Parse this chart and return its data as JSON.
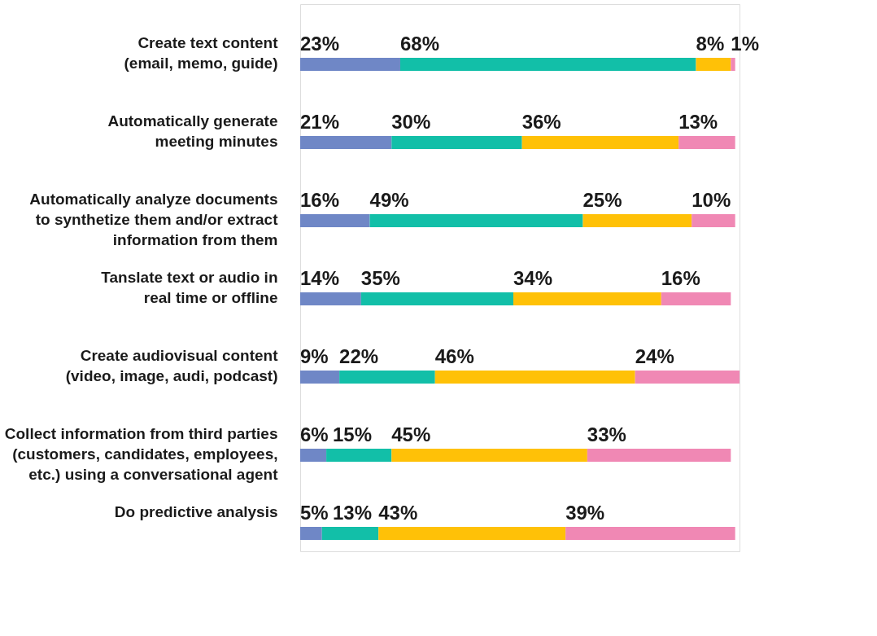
{
  "chart_data": {
    "type": "bar",
    "orientation": "horizontal",
    "stacked": true,
    "data_labels": false,
    "categories": [
      "Create text content\n(email, memo, guide)",
      "Automatically generate\nmeeting minutes",
      "Automatically analyze documents\nto synthetize them and/or extract\ninformation from them",
      "Tanslate text or audio in\nreal time or offline",
      "Create audiovisual content\n(video, image, audi, podcast)",
      "Collect information from third parties\n(customers, candidates, employees,\netc.) using a conversational agent",
      "Do predictive analysis"
    ],
    "series": [
      {
        "color": "#6f87c6",
        "values": [
          23,
          21,
          16,
          14,
          9,
          6,
          5
        ],
        "value_labels": [
          "23%",
          "21%",
          "16%",
          "14%",
          "9%",
          "6%",
          "5%"
        ]
      },
      {
        "color": "#12bfa8",
        "values": [
          68,
          30,
          49,
          35,
          22,
          15,
          13
        ],
        "value_labels": [
          "68%",
          "30%",
          "49%",
          "35%",
          "22%",
          "15%",
          "13%"
        ]
      },
      {
        "color": "#ffc107",
        "values": [
          8,
          36,
          25,
          34,
          46,
          45,
          43
        ],
        "value_labels": [
          "8%",
          "36%",
          "25%",
          "34%",
          "46%",
          "45%",
          "43%"
        ]
      },
      {
        "color": "#f088b4",
        "values": [
          1,
          13,
          10,
          16,
          24,
          33,
          39
        ],
        "value_labels": [
          "1%",
          "13%",
          "10%",
          "16%",
          "24%",
          "33%",
          "39%"
        ]
      }
    ],
    "legend": false,
    "tick_labels": "y"
  }
}
